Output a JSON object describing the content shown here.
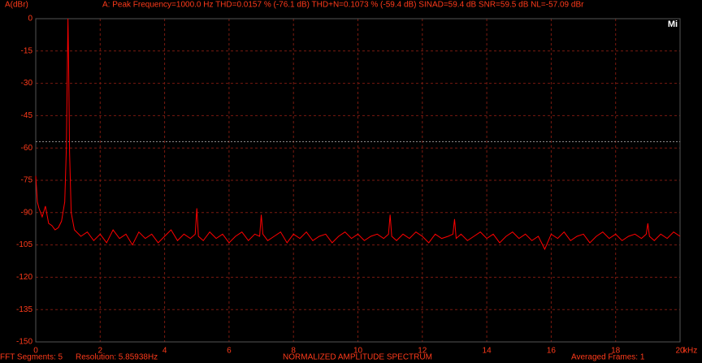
{
  "chart_data": {
    "type": "line",
    "title": "A: Peak Frequency=1000.0 Hz  THD=0.0157 % (-76.1 dB)  THD+N=0.1073 % (-59.4 dB)  SINAD=59.4 dB  SNR=59.5 dB  NL=-57.09 dBr",
    "y_label": "A(dBr)",
    "x_label": "kHz",
    "logo": "Mi",
    "notes": [
      "FFT Segments: 5",
      "Resolution: 5.85938Hz",
      "NORMALIZED AMPLITUDE SPECTRUM",
      "Averaged Frames: 1"
    ],
    "noise_level": -57.09,
    "xlim": [
      0,
      20
    ],
    "xticks": [
      0,
      2,
      4,
      6,
      8,
      10,
      12,
      14,
      16,
      18,
      20
    ],
    "ylim": [
      -150,
      0
    ],
    "yticks": [
      0,
      -15,
      -30,
      -45,
      -60,
      -75,
      -90,
      -105,
      -120,
      -135,
      -150
    ],
    "grid": true,
    "x": [
      0,
      0.05,
      0.1,
      0.2,
      0.3,
      0.4,
      0.5,
      0.6,
      0.7,
      0.8,
      0.9,
      0.95,
      1.0,
      1.02,
      1.05,
      1.1,
      1.2,
      1.4,
      1.6,
      1.8,
      2.0,
      2.2,
      2.4,
      2.6,
      2.8,
      3.0,
      3.2,
      3.4,
      3.6,
      3.8,
      4.0,
      4.2,
      4.4,
      4.6,
      4.8,
      4.95,
      5.0,
      5.05,
      5.2,
      5.4,
      5.6,
      5.8,
      6.0,
      6.2,
      6.4,
      6.6,
      6.8,
      6.95,
      7.0,
      7.05,
      7.2,
      7.4,
      7.6,
      7.8,
      8.0,
      8.2,
      8.4,
      8.6,
      8.8,
      9.0,
      9.2,
      9.4,
      9.6,
      9.8,
      10.0,
      10.2,
      10.4,
      10.6,
      10.8,
      10.95,
      11.0,
      11.05,
      11.2,
      11.4,
      11.6,
      11.8,
      12.0,
      12.2,
      12.4,
      12.6,
      12.8,
      12.95,
      13.0,
      13.05,
      13.2,
      13.4,
      13.6,
      13.8,
      14.0,
      14.2,
      14.4,
      14.6,
      14.8,
      15.0,
      15.2,
      15.4,
      15.6,
      15.8,
      16.0,
      16.2,
      16.4,
      16.6,
      16.8,
      17.0,
      17.2,
      17.4,
      17.6,
      17.8,
      18.0,
      18.2,
      18.4,
      18.6,
      18.8,
      18.95,
      19.0,
      19.05,
      19.2,
      19.4,
      19.6,
      19.8,
      20.0
    ],
    "series": [
      {
        "name": "A",
        "color": "#ff0000",
        "values": [
          -73,
          -85,
          -88,
          -92,
          -87,
          -95,
          -96,
          -98,
          -97,
          -94,
          -85,
          -60,
          0,
          -20,
          -62,
          -90,
          -98,
          -101,
          -99,
          -103,
          -100,
          -104,
          -98,
          -102,
          -100,
          -105,
          -99,
          -102,
          -100,
          -104,
          -101,
          -98,
          -103,
          -100,
          -102,
          -100,
          -88,
          -101,
          -103,
          -99,
          -102,
          -100,
          -104,
          -101,
          -99,
          -103,
          -100,
          -101,
          -91,
          -100,
          -103,
          -101,
          -99,
          -104,
          -100,
          -102,
          -99,
          -103,
          -101,
          -100,
          -104,
          -101,
          -99,
          -102,
          -100,
          -103,
          -101,
          -100,
          -102,
          -100,
          -91,
          -101,
          -103,
          -100,
          -102,
          -99,
          -101,
          -104,
          -100,
          -102,
          -101,
          -100,
          -93,
          -102,
          -100,
          -103,
          -101,
          -99,
          -102,
          -100,
          -104,
          -101,
          -99,
          -102,
          -100,
          -103,
          -101,
          -107,
          -100,
          -102,
          -99,
          -103,
          -101,
          -100,
          -104,
          -101,
          -99,
          -102,
          -100,
          -103,
          -101,
          -100,
          -102,
          -100,
          -95,
          -101,
          -103,
          -100,
          -102,
          -99,
          -101
        ]
      }
    ]
  }
}
